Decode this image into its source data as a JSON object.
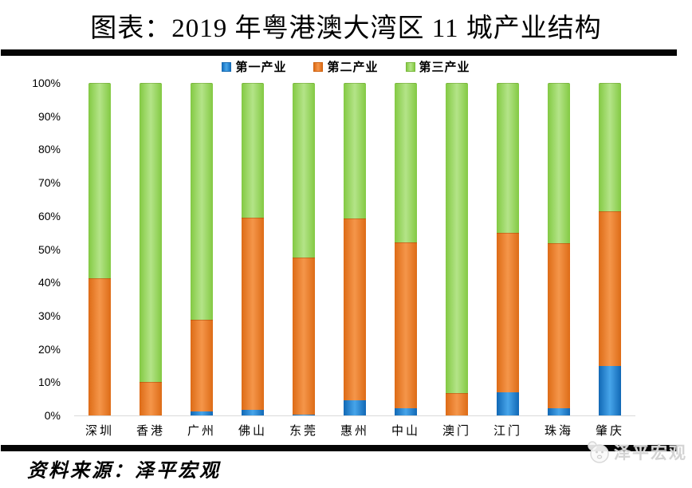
{
  "title": "图表：2019 年粤港澳大湾区 11 城产业结构",
  "footer": {
    "source_label": "资料来源：泽平宏观"
  },
  "watermark": {
    "text": "泽平宏观",
    "icon": "avatar-face-icon"
  },
  "colors": {
    "primary": "#2e8fdb",
    "secondary": "#ed7d31",
    "tertiary": "#92d050",
    "rule": "#000000",
    "axis_line": "#d9d9d9",
    "watermark_gray": "#d4d4d4"
  },
  "chart_data": {
    "type": "bar",
    "stacked": true,
    "title": "图表：2019 年粤港澳大湾区 11 城产业结构",
    "categories": [
      "深圳",
      "香港",
      "广州",
      "佛山",
      "东莞",
      "惠州",
      "中山",
      "澳门",
      "江门",
      "珠海",
      "肇庆"
    ],
    "series": [
      {
        "key": "primary",
        "name": "第一产业",
        "color": "#2e8fdb",
        "values": [
          0.1,
          0.1,
          1.2,
          1.7,
          0.3,
          4.6,
          2.2,
          0.0,
          7.0,
          2.2,
          14.9
        ]
      },
      {
        "key": "secondary",
        "name": "第二产业",
        "color": "#ed7d31",
        "values": [
          41.1,
          9.9,
          27.6,
          57.8,
          47.2,
          54.6,
          49.8,
          6.7,
          47.9,
          49.6,
          46.5
        ]
      },
      {
        "key": "tertiary",
        "name": "第三产业",
        "color": "#92d050",
        "values": [
          58.8,
          90.0,
          71.2,
          40.5,
          52.5,
          40.8,
          48.0,
          93.3,
          45.1,
          48.2,
          38.6
        ]
      }
    ],
    "ylim": [
      0,
      100
    ],
    "ytick_labels": [
      "100%",
      "90%",
      "80%",
      "70%",
      "60%",
      "50%",
      "40%",
      "30%",
      "20%",
      "10%",
      "0%"
    ],
    "grid": false,
    "legend_position": "top"
  }
}
